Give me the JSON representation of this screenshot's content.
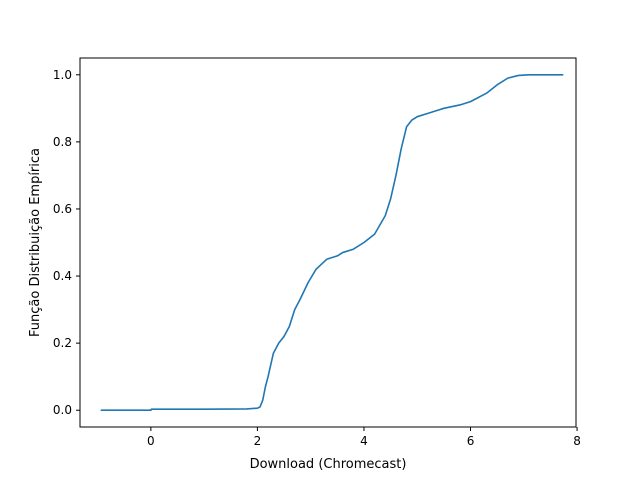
{
  "chart_data": {
    "type": "line",
    "title": "",
    "xlabel": "Download (Chromecast)",
    "ylabel": "Função Distribuição Empírica",
    "xlim": [
      -1.33,
      7.98
    ],
    "ylim": [
      -0.05,
      1.05
    ],
    "xticks": [
      {
        "value": 0,
        "label": "0"
      },
      {
        "value": 2,
        "label": "2"
      },
      {
        "value": 4,
        "label": "4"
      },
      {
        "value": 6,
        "label": "6"
      },
      {
        "value": 8,
        "label": "8"
      }
    ],
    "yticks": [
      {
        "value": 0.0,
        "label": "0.0"
      },
      {
        "value": 0.2,
        "label": "0.2"
      },
      {
        "value": 0.4,
        "label": "0.4"
      },
      {
        "value": 0.6,
        "label": "0.6"
      },
      {
        "value": 0.8,
        "label": "0.8"
      },
      {
        "value": 1.0,
        "label": "1.0"
      }
    ],
    "grid": false,
    "legend": "none",
    "series": [
      {
        "color": "#1f77b4",
        "x": [
          -0.93,
          0.0,
          0.01,
          1.0,
          1.8,
          2.0,
          2.05,
          2.1,
          2.15,
          2.2,
          2.3,
          2.4,
          2.5,
          2.6,
          2.7,
          2.8,
          2.95,
          3.1,
          3.3,
          3.5,
          3.6,
          3.8,
          4.0,
          4.2,
          4.4,
          4.5,
          4.6,
          4.7,
          4.8,
          4.9,
          5.0,
          5.2,
          5.4,
          5.5,
          5.8,
          6.0,
          6.3,
          6.5,
          6.7,
          6.9,
          7.1,
          7.73
        ],
        "y": [
          0.0,
          0.0,
          0.003,
          0.003,
          0.004,
          0.006,
          0.01,
          0.03,
          0.07,
          0.1,
          0.17,
          0.2,
          0.22,
          0.25,
          0.3,
          0.33,
          0.38,
          0.42,
          0.45,
          0.46,
          0.47,
          0.48,
          0.5,
          0.525,
          0.58,
          0.63,
          0.7,
          0.78,
          0.845,
          0.865,
          0.875,
          0.885,
          0.895,
          0.9,
          0.91,
          0.92,
          0.945,
          0.97,
          0.99,
          0.998,
          1.0,
          1.0
        ]
      }
    ]
  }
}
